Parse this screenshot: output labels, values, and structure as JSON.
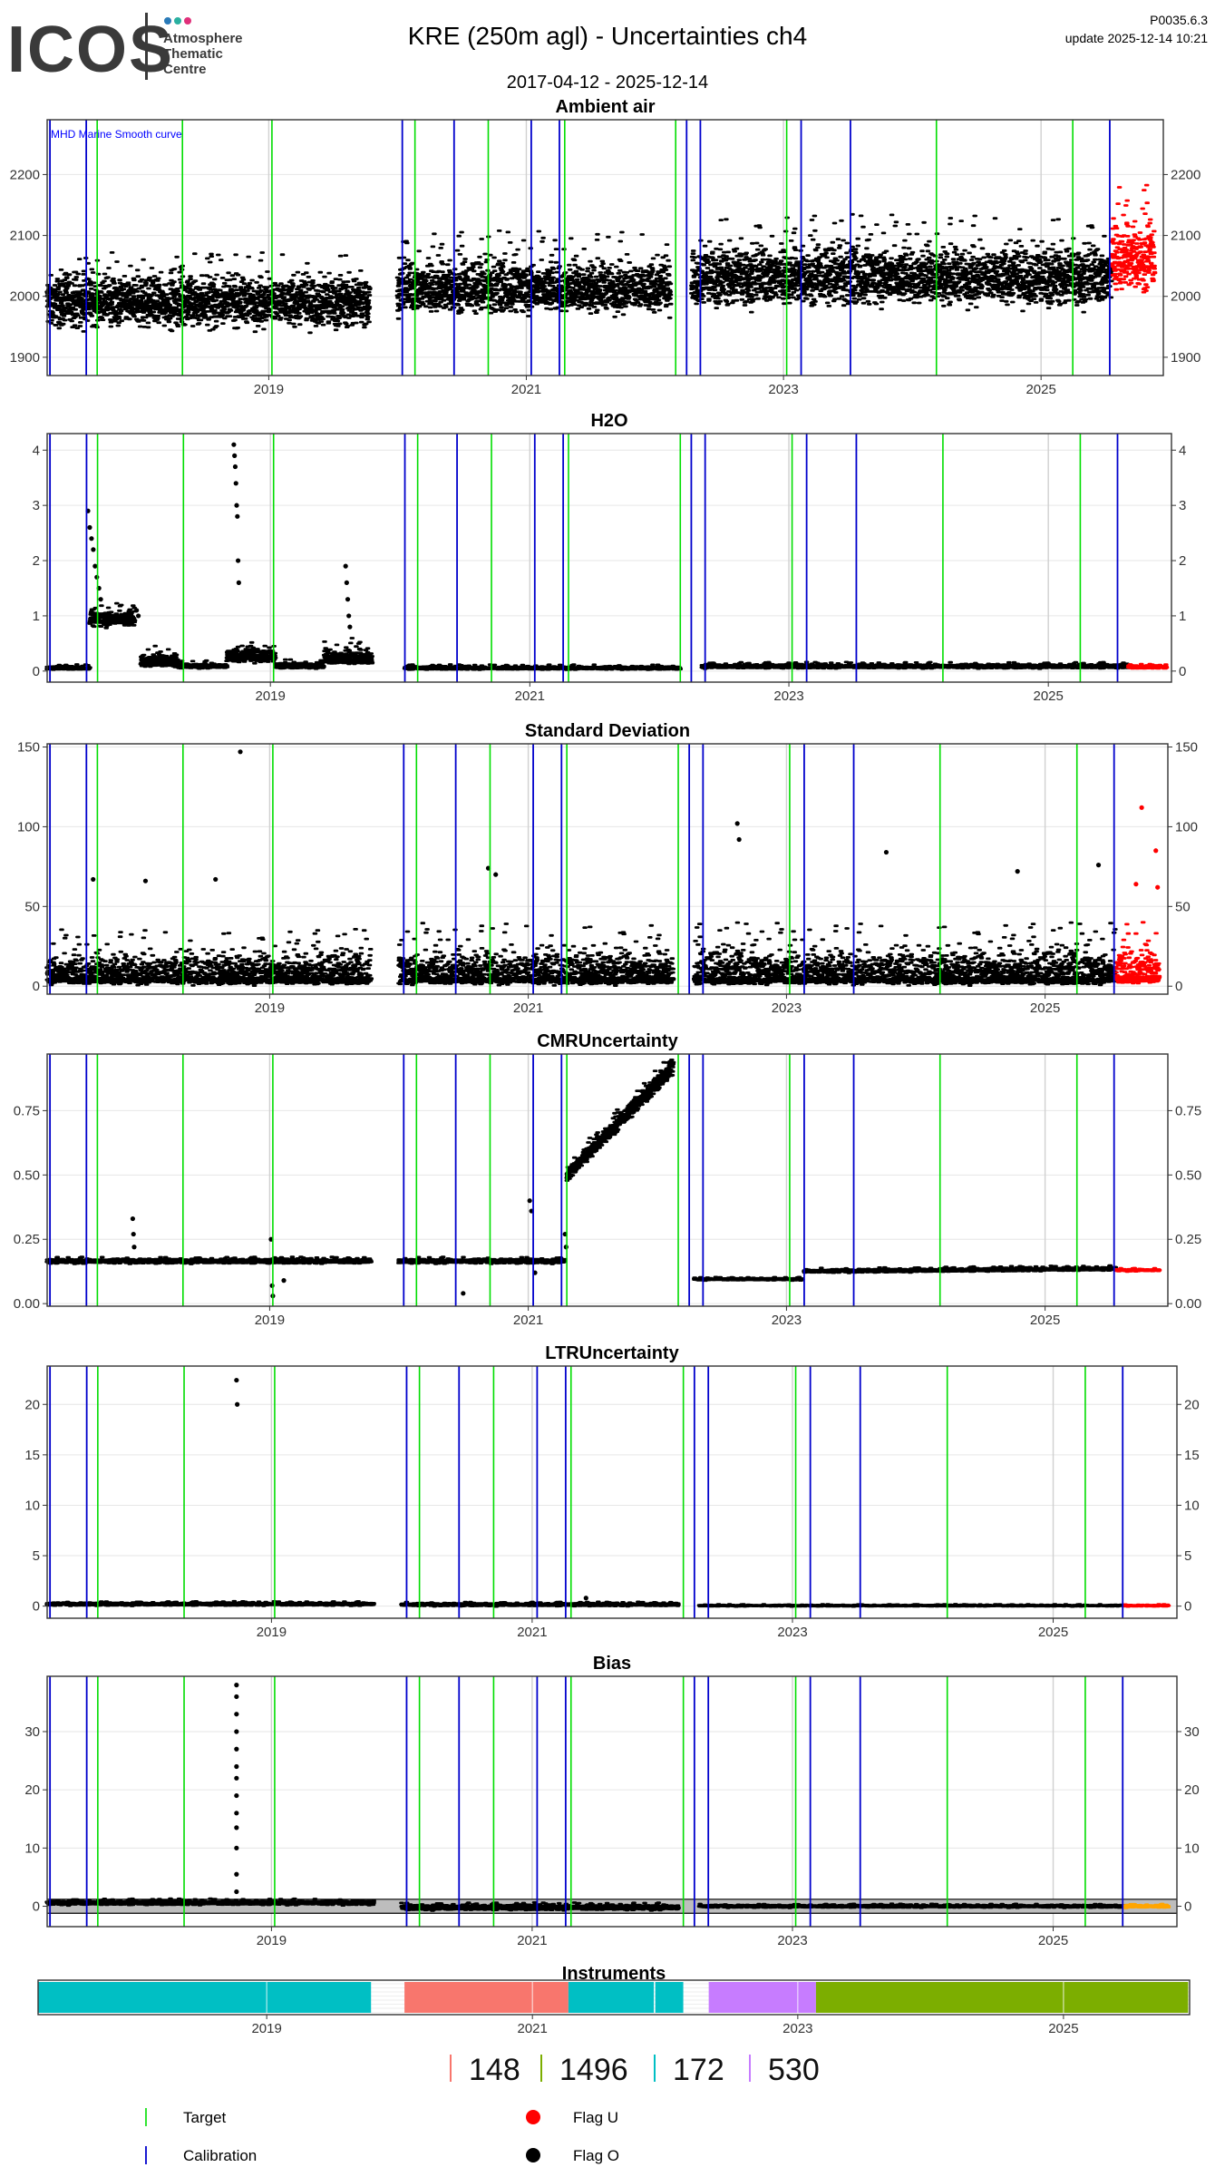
{
  "header": {
    "logo": "ICOS",
    "logo_subtitle": [
      "Atmosphere",
      "Thematic",
      "Centre"
    ],
    "logo_colors": [
      "#2a7ab8",
      "#2ab0a0",
      "#e0307a"
    ],
    "title": "KRE  (250m agl) - Uncertainties ch4",
    "date_range": "2017-04-12 - 2025-12-14",
    "version": "P0035.6.3",
    "update": "update  2025-12-14 10:21"
  },
  "colors": {
    "data": "#000000",
    "flag_u": "#ff0000",
    "target": "#00dd00",
    "calibration": "#0000cc",
    "bias_band": "#bdbdbd",
    "bias_flag": "#ffa500"
  },
  "markers": {
    "calibration": [
      "2017-04-20",
      "2017-08-01",
      "2020-01-15",
      "2020-06-10",
      "2021-01-15",
      "2021-04-05",
      "2022-04-01",
      "2022-05-10",
      "2023-02-20",
      "2023-07-10",
      "2025-07-15"
    ],
    "target": [
      "2017-09-01",
      "2018-05-01",
      "2019-01-10",
      "2020-02-20",
      "2020-09-15",
      "2021-04-20",
      "2022-03-01",
      "2023-01-10",
      "2024-03-10",
      "2025-04-01"
    ]
  },
  "x_ticks": [
    "2019",
    "2021",
    "2023",
    "2025"
  ],
  "chart_data": [
    {
      "id": "ambient",
      "type": "scatter",
      "title": "Ambient air",
      "annotation": "MHD Marine Smooth curve",
      "xlim": [
        "2017-04-12",
        "2025-12-14"
      ],
      "ylim": [
        1870,
        2290
      ],
      "yticks": [
        1900,
        2000,
        2100,
        2200
      ],
      "ytick_labels": [
        "1900",
        "2000",
        "2100",
        "2200"
      ],
      "grid": true,
      "series": [
        {
          "style": "black",
          "x_range": [
            "2017-04-12",
            "2019-10-15"
          ],
          "base": 1990,
          "band": [
            -55,
            60
          ],
          "trend": 0
        },
        {
          "style": "black",
          "x_range": [
            "2020-01-01",
            "2022-02-15"
          ],
          "base": 2010,
          "band": [
            -50,
            70
          ],
          "trend": 0
        },
        {
          "style": "black",
          "x_range": [
            "2022-04-15",
            "2025-07-20"
          ],
          "base": 2030,
          "band": [
            -60,
            75
          ],
          "trend": 0
        },
        {
          "style": "red",
          "x_range": [
            "2025-07-20",
            "2025-11-20"
          ],
          "base": 2060,
          "band": [
            -70,
            90
          ],
          "trend": 0
        }
      ],
      "outliers": []
    },
    {
      "id": "h2o",
      "type": "scatter",
      "title": "H2O",
      "xlim": [
        "2017-04-12",
        "2025-12-14"
      ],
      "ylim": [
        -0.2,
        4.3
      ],
      "yticks": [
        0,
        1,
        2,
        3,
        4
      ],
      "ytick_labels": [
        "0",
        "1",
        "2",
        "3",
        "4"
      ],
      "grid": true,
      "series": [
        {
          "style": "black",
          "x_range": [
            "2017-04-12",
            "2017-08-10"
          ],
          "base": 0.05,
          "band": [
            -0.03,
            0.05
          ],
          "trend": 0
        },
        {
          "style": "black",
          "x_range": [
            "2017-08-10",
            "2017-12-15"
          ],
          "base": 0.95,
          "band": [
            -0.2,
            0.2
          ],
          "trend": 0
        },
        {
          "style": "black",
          "x_range": [
            "2018-01-01",
            "2018-04-15"
          ],
          "base": 0.15,
          "band": [
            -0.1,
            0.25
          ],
          "trend": 0
        },
        {
          "style": "black",
          "x_range": [
            "2018-04-15",
            "2018-09-01"
          ],
          "base": 0.08,
          "band": [
            -0.04,
            0.08
          ],
          "trend": 0
        },
        {
          "style": "black",
          "x_range": [
            "2018-09-01",
            "2019-01-15"
          ],
          "base": 0.25,
          "band": [
            -0.12,
            0.25
          ],
          "trend": 0
        },
        {
          "style": "black",
          "x_range": [
            "2019-01-15",
            "2019-06-01"
          ],
          "base": 0.08,
          "band": [
            -0.04,
            0.1
          ],
          "trend": 0
        },
        {
          "style": "black",
          "x_range": [
            "2019-06-01",
            "2019-10-15"
          ],
          "base": 0.2,
          "band": [
            -0.1,
            0.3
          ],
          "trend": 0
        },
        {
          "style": "black",
          "x_range": [
            "2020-01-15",
            "2022-03-01"
          ],
          "base": 0.05,
          "band": [
            -0.03,
            0.05
          ],
          "trend": 0
        },
        {
          "style": "black",
          "x_range": [
            "2022-05-01",
            "2025-08-15"
          ],
          "base": 0.08,
          "band": [
            -0.04,
            0.06
          ],
          "trend": 0.0
        },
        {
          "style": "red",
          "x_range": [
            "2025-08-15",
            "2025-11-30"
          ],
          "base": 0.07,
          "band": [
            -0.03,
            0.04
          ],
          "trend": 0
        }
      ],
      "outliers": [
        {
          "style": "black",
          "x": "2017-08-05",
          "y": 2.9
        },
        {
          "style": "black",
          "x": "2017-08-10",
          "y": 2.6
        },
        {
          "style": "black",
          "x": "2017-08-15",
          "y": 2.4
        },
        {
          "style": "black",
          "x": "2017-08-20",
          "y": 2.2
        },
        {
          "style": "black",
          "x": "2017-08-25",
          "y": 1.9
        },
        {
          "style": "black",
          "x": "2017-08-30",
          "y": 1.7
        },
        {
          "style": "black",
          "x": "2017-09-05",
          "y": 1.5
        },
        {
          "style": "black",
          "x": "2017-09-10",
          "y": 1.3
        },
        {
          "style": "black",
          "x": "2017-12-20",
          "y": 1.1
        },
        {
          "style": "black",
          "x": "2017-12-25",
          "y": 1.0
        },
        {
          "style": "black",
          "x": "2018-09-20",
          "y": 4.1
        },
        {
          "style": "black",
          "x": "2018-09-22",
          "y": 3.9
        },
        {
          "style": "black",
          "x": "2018-09-24",
          "y": 3.7
        },
        {
          "style": "black",
          "x": "2018-09-26",
          "y": 3.4
        },
        {
          "style": "black",
          "x": "2018-09-28",
          "y": 3.0
        },
        {
          "style": "black",
          "x": "2018-09-30",
          "y": 2.8
        },
        {
          "style": "black",
          "x": "2018-10-02",
          "y": 2.0
        },
        {
          "style": "black",
          "x": "2018-10-04",
          "y": 1.6
        },
        {
          "style": "black",
          "x": "2019-08-01",
          "y": 1.9
        },
        {
          "style": "black",
          "x": "2019-08-04",
          "y": 1.6
        },
        {
          "style": "black",
          "x": "2019-08-07",
          "y": 1.3
        },
        {
          "style": "black",
          "x": "2019-08-10",
          "y": 1.0
        },
        {
          "style": "black",
          "x": "2019-08-13",
          "y": 0.8
        }
      ]
    },
    {
      "id": "stddev",
      "type": "scatter",
      "title": "Standard Deviation",
      "xlim": [
        "2017-04-12",
        "2025-12-14"
      ],
      "ylim": [
        -5,
        152
      ],
      "yticks": [
        0,
        50,
        100,
        150
      ],
      "ytick_labels": [
        "0",
        "50",
        "100",
        "150"
      ],
      "grid": true,
      "series": [
        {
          "style": "black",
          "x_range": [
            "2017-04-12",
            "2019-10-15"
          ],
          "base": 5,
          "band": [
            -5,
            22
          ],
          "trend": 0
        },
        {
          "style": "black",
          "x_range": [
            "2020-01-01",
            "2022-02-15"
          ],
          "base": 5,
          "band": [
            -5,
            25
          ],
          "trend": 0
        },
        {
          "style": "black",
          "x_range": [
            "2022-04-15",
            "2025-07-20"
          ],
          "base": 5,
          "band": [
            -5,
            25
          ],
          "trend": 0
        },
        {
          "style": "red",
          "x_range": [
            "2025-07-20",
            "2025-11-20"
          ],
          "base": 6,
          "band": [
            -6,
            28
          ],
          "trend": 0
        }
      ],
      "outliers": [
        {
          "style": "black",
          "x": "2018-10-10",
          "y": 147
        },
        {
          "style": "black",
          "x": "2022-08-15",
          "y": 102
        },
        {
          "style": "black",
          "x": "2022-08-20",
          "y": 92
        },
        {
          "style": "black",
          "x": "2023-10-10",
          "y": 84
        },
        {
          "style": "black",
          "x": "2020-09-10",
          "y": 74
        },
        {
          "style": "black",
          "x": "2020-10-01",
          "y": 70
        },
        {
          "style": "black",
          "x": "2017-08-20",
          "y": 67
        },
        {
          "style": "black",
          "x": "2018-01-15",
          "y": 66
        },
        {
          "style": "black",
          "x": "2018-08-01",
          "y": 67
        },
        {
          "style": "black",
          "x": "2024-10-15",
          "y": 72
        },
        {
          "style": "black",
          "x": "2025-06-01",
          "y": 76
        },
        {
          "style": "red",
          "x": "2025-10-01",
          "y": 112
        },
        {
          "style": "red",
          "x": "2025-11-10",
          "y": 85
        },
        {
          "style": "red",
          "x": "2025-11-15",
          "y": 62
        },
        {
          "style": "red",
          "x": "2025-09-15",
          "y": 64
        }
      ]
    },
    {
      "id": "cmr",
      "type": "scatter",
      "title": "CMRUncertainty",
      "xlim": [
        "2017-04-12",
        "2025-12-14"
      ],
      "ylim": [
        -0.01,
        0.97
      ],
      "yticks": [
        0,
        0.25,
        0.5,
        0.75
      ],
      "ytick_labels": [
        "0.00",
        "0.25",
        "0.50",
        "0.75"
      ],
      "grid": true,
      "series": [
        {
          "style": "black",
          "x_range": [
            "2017-04-12",
            "2019-10-15"
          ],
          "base": 0.165,
          "band": [
            -0.012,
            0.012
          ],
          "trend": 0
        },
        {
          "style": "black",
          "x_range": [
            "2020-01-01",
            "2021-04-15"
          ],
          "base": 0.165,
          "band": [
            -0.012,
            0.012
          ],
          "trend": 0
        },
        {
          "style": "black",
          "x_range": [
            "2021-04-20",
            "2022-02-15"
          ],
          "base": 0.5,
          "band": [
            -0.04,
            0.04
          ],
          "trend": 0.42
        },
        {
          "style": "black",
          "x_range": [
            "2022-04-15",
            "2023-02-15"
          ],
          "base": 0.095,
          "band": [
            -0.006,
            0.006
          ],
          "trend": 0
        },
        {
          "style": "black",
          "x_range": [
            "2023-02-20",
            "2025-07-20"
          ],
          "base": 0.125,
          "band": [
            -0.008,
            0.01
          ],
          "trend": 0.01
        },
        {
          "style": "red",
          "x_range": [
            "2025-07-20",
            "2025-11-20"
          ],
          "base": 0.13,
          "band": [
            -0.006,
            0.006
          ],
          "trend": 0
        }
      ],
      "outliers": [
        {
          "style": "black",
          "x": "2017-12-10",
          "y": 0.33
        },
        {
          "style": "black",
          "x": "2017-12-12",
          "y": 0.27
        },
        {
          "style": "black",
          "x": "2017-12-14",
          "y": 0.22
        },
        {
          "style": "black",
          "x": "2019-01-05",
          "y": 0.25
        },
        {
          "style": "black",
          "x": "2019-01-08",
          "y": 0.07
        },
        {
          "style": "black",
          "x": "2019-01-10",
          "y": 0.03
        },
        {
          "style": "black",
          "x": "2019-02-10",
          "y": 0.09
        },
        {
          "style": "black",
          "x": "2020-07-01",
          "y": 0.04
        },
        {
          "style": "black",
          "x": "2021-01-05",
          "y": 0.4
        },
        {
          "style": "black",
          "x": "2021-01-10",
          "y": 0.36
        },
        {
          "style": "black",
          "x": "2021-01-20",
          "y": 0.12
        },
        {
          "style": "black",
          "x": "2021-04-15",
          "y": 0.27
        },
        {
          "style": "black",
          "x": "2021-04-18",
          "y": 0.22
        }
      ]
    },
    {
      "id": "ltr",
      "type": "scatter",
      "title": "LTRUncertainty",
      "xlim": [
        "2017-04-12",
        "2025-12-14"
      ],
      "ylim": [
        -1.2,
        23.8
      ],
      "yticks": [
        0,
        5,
        10,
        15,
        20
      ],
      "ytick_labels": [
        "0",
        "5",
        "10",
        "15",
        "20"
      ],
      "grid": true,
      "series": [
        {
          "style": "black",
          "x_range": [
            "2017-04-12",
            "2019-10-15"
          ],
          "base": 0.2,
          "band": [
            -0.2,
            0.2
          ],
          "trend": 0
        },
        {
          "style": "black",
          "x_range": [
            "2020-01-01",
            "2022-02-15"
          ],
          "base": 0.15,
          "band": [
            -0.2,
            0.2
          ],
          "trend": 0
        },
        {
          "style": "black",
          "x_range": [
            "2022-04-15",
            "2025-07-20"
          ],
          "base": 0.05,
          "band": [
            -0.1,
            0.1
          ],
          "trend": 0
        },
        {
          "style": "red",
          "x_range": [
            "2025-07-20",
            "2025-11-20"
          ],
          "base": 0.05,
          "band": [
            -0.1,
            0.1
          ],
          "trend": 0
        }
      ],
      "outliers": [
        {
          "style": "black",
          "x": "2018-09-25",
          "y": 22.4
        },
        {
          "style": "black",
          "x": "2018-09-27",
          "y": 20.0
        },
        {
          "style": "black",
          "x": "2021-06-01",
          "y": 0.8
        }
      ]
    },
    {
      "id": "bias",
      "type": "scatter",
      "title": "Bias",
      "xlim": [
        "2017-04-12",
        "2025-12-14"
      ],
      "ylim": [
        -3.5,
        39.5
      ],
      "yticks": [
        0,
        10,
        20,
        30
      ],
      "ytick_labels": [
        "0",
        "10",
        "20",
        "30"
      ],
      "grid": true,
      "band": {
        "y_lo": -1.2,
        "y_hi": 1.2
      },
      "series": [
        {
          "style": "black",
          "x_range": [
            "2017-04-12",
            "2019-10-15"
          ],
          "base": 0.6,
          "band": [
            -0.5,
            0.5
          ],
          "trend": 0
        },
        {
          "style": "black",
          "x_range": [
            "2020-01-01",
            "2022-02-15"
          ],
          "base": -0.2,
          "band": [
            -0.6,
            0.6
          ],
          "trend": 0
        },
        {
          "style": "black",
          "x_range": [
            "2022-04-15",
            "2025-07-20"
          ],
          "base": 0.0,
          "band": [
            -0.3,
            0.3
          ],
          "trend": 0
        },
        {
          "style": "orange",
          "x_range": [
            "2025-07-20",
            "2025-11-20"
          ],
          "base": 0.0,
          "band": [
            -0.3,
            0.3
          ],
          "trend": 0
        }
      ],
      "outliers": [
        {
          "style": "black",
          "x": "2018-09-25",
          "y": 38
        },
        {
          "style": "black",
          "x": "2018-09-25",
          "y": 36
        },
        {
          "style": "black",
          "x": "2018-09-25",
          "y": 33
        },
        {
          "style": "black",
          "x": "2018-09-25",
          "y": 30
        },
        {
          "style": "black",
          "x": "2018-09-25",
          "y": 27
        },
        {
          "style": "black",
          "x": "2018-09-25",
          "y": 24
        },
        {
          "style": "black",
          "x": "2018-09-25",
          "y": 22
        },
        {
          "style": "black",
          "x": "2018-09-25",
          "y": 19
        },
        {
          "style": "black",
          "x": "2018-09-25",
          "y": 16
        },
        {
          "style": "black",
          "x": "2018-09-25",
          "y": 13.5
        },
        {
          "style": "black",
          "x": "2018-09-25",
          "y": 10
        },
        {
          "style": "black",
          "x": "2018-09-25",
          "y": 5.5
        },
        {
          "style": "black",
          "x": "2018-09-25",
          "y": 2.5
        }
      ]
    },
    {
      "id": "instruments",
      "type": "bar",
      "title": "Instruments",
      "xlim": [
        "2017-04-12",
        "2025-12-14"
      ],
      "segments": [
        {
          "instrument": "172",
          "color": "#00bfc4",
          "start": "2017-04-12",
          "end": "2019-10-15"
        },
        {
          "instrument": "148",
          "color": "#f8766d",
          "start": "2020-01-15",
          "end": "2021-04-10"
        },
        {
          "instrument": "172",
          "color": "#00bfc4",
          "start": "2021-04-10",
          "end": "2021-12-01"
        },
        {
          "instrument": "172",
          "color": "#00bfc4",
          "start": "2021-12-05",
          "end": "2022-02-20"
        },
        {
          "instrument": "530",
          "color": "#c77cff",
          "start": "2022-05-01",
          "end": "2023-02-20"
        },
        {
          "instrument": "1496",
          "color": "#7cae00",
          "start": "2023-02-20",
          "end": "2025-12-10"
        }
      ],
      "legend": [
        {
          "label": "148",
          "color": "#f8766d"
        },
        {
          "label": "1496",
          "color": "#7cae00"
        },
        {
          "label": "172",
          "color": "#00bfc4"
        },
        {
          "label": "530",
          "color": "#c77cff"
        }
      ]
    }
  ],
  "legend": {
    "target": "Target",
    "calibration": "Calibration",
    "flag_u": "Flag U",
    "flag_o": "Flag O"
  }
}
